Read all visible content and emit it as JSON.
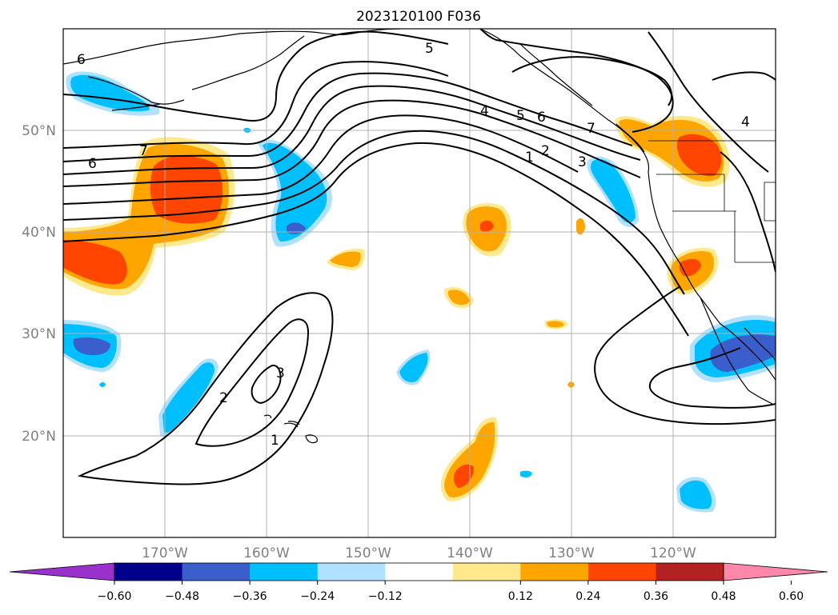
{
  "title": "2023120100 F036",
  "map": {
    "lat_labels": [
      "50°N",
      "40°N",
      "30°N",
      "20°N"
    ],
    "lon_labels": [
      "170°W",
      "160°W",
      "150°W",
      "140°W",
      "130°W",
      "120°W"
    ],
    "contour_labels": [
      "6",
      "7",
      "6",
      "5",
      "4",
      "5",
      "6",
      "7",
      "4",
      "3",
      "2",
      "1",
      "2",
      "3",
      "1"
    ],
    "label_color": "#808080",
    "grid_color": "#b0b0b0"
  },
  "colorbar": {
    "ticks": [
      "−0.60",
      "−0.48",
      "−0.36",
      "−0.24",
      "−0.12",
      "0.12",
      "0.24",
      "0.36",
      "0.48",
      "0.60"
    ],
    "colors": [
      "#9932cc",
      "#00008b",
      "#3a5fcd",
      "#00bfff",
      "#b0e2ff",
      "#ffffff",
      "#ffe98c",
      "#ffa500",
      "#ff4500",
      "#b22222",
      "#ff88aa"
    ]
  }
}
